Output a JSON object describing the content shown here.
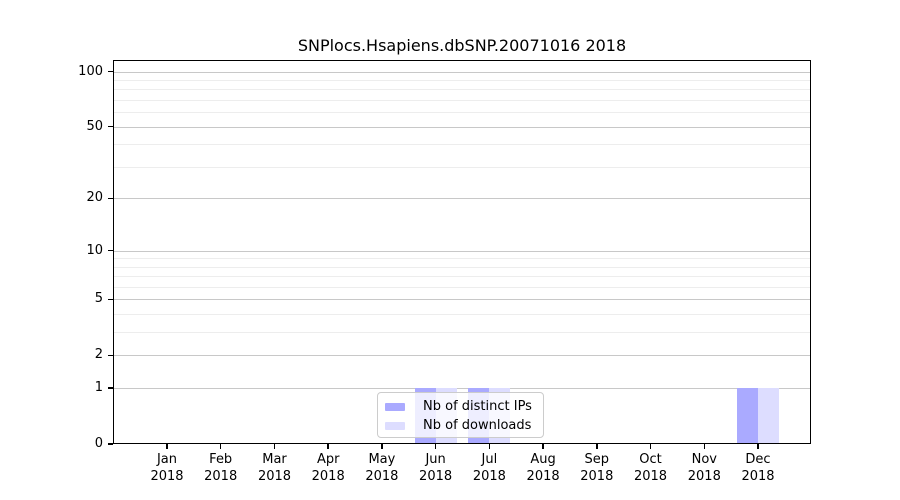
{
  "chart_data": {
    "type": "bar",
    "title": "SNPlocs.Hsapiens.dbSNP.20071016 2018",
    "categories": [
      "Jan",
      "Feb",
      "Mar",
      "Apr",
      "May",
      "Jun",
      "Jul",
      "Aug",
      "Sep",
      "Oct",
      "Nov",
      "Dec"
    ],
    "category_year": "2018",
    "series": [
      {
        "name": "Nb of distinct IPs",
        "color": "#aaaaff",
        "values": [
          0,
          0,
          0,
          0,
          0,
          1,
          1,
          0,
          0,
          0,
          0,
          1
        ]
      },
      {
        "name": "Nb of downloads",
        "color": "#ddddff",
        "values": [
          0,
          0,
          0,
          0,
          0,
          1,
          1,
          0,
          0,
          0,
          0,
          1
        ]
      }
    ],
    "yscale": "log1p",
    "yticks": [
      0,
      1,
      2,
      5,
      10,
      20,
      50,
      100
    ],
    "minor_gridlines": [
      3,
      4,
      6,
      7,
      8,
      9,
      30,
      40,
      60,
      70,
      80,
      90
    ],
    "ylim": [
      0,
      115
    ],
    "grid": true,
    "legend_position": "lower center",
    "colors": {
      "axis": "#000000",
      "grid_major": "#c8c8c8",
      "grid_minor": "#ededed",
      "background": "#ffffff"
    }
  }
}
